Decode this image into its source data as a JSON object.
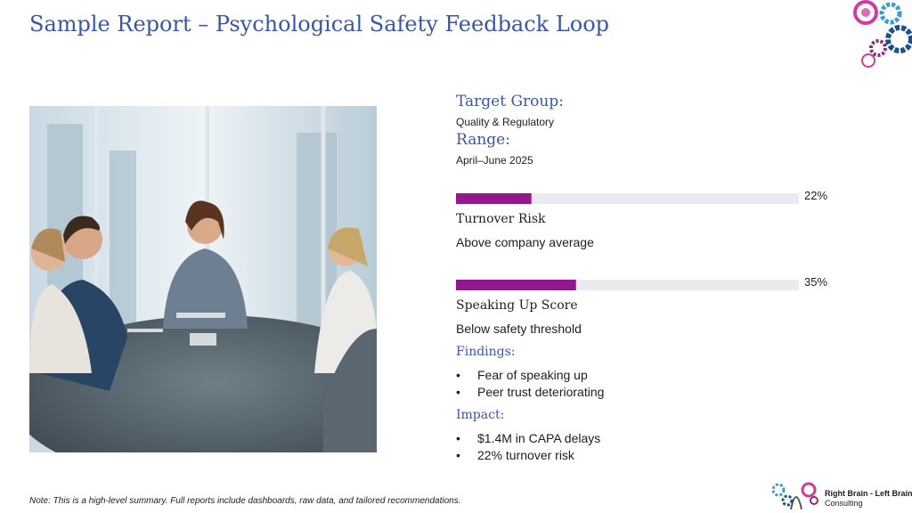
{
  "header": {
    "title": "Sample Report – Psychological Safety Feedback Loop"
  },
  "details": {
    "target_group": {
      "label": "Target Group:",
      "value": "Quality & Regulatory"
    },
    "range": {
      "label": "Range:",
      "value": "April–June 2025"
    }
  },
  "metrics": {
    "xlim": [
      0,
      100
    ],
    "color": "#93188f",
    "track_color": "#e9ebf1",
    "items": [
      {
        "value": 22,
        "value_label": "22%",
        "name": "Turnover Risk",
        "note": "Above company average"
      },
      {
        "value": 35,
        "value_label": "35%",
        "name": "Speaking Up Score",
        "note": "Below safety threshold"
      }
    ]
  },
  "findings": {
    "heading": "Findings:",
    "items": [
      "Fear of speaking up",
      "Peer trust deteriorating"
    ]
  },
  "impact": {
    "heading": "Impact:",
    "items": [
      "$1.4M in CAPA delays",
      "22% turnover risk"
    ]
  },
  "footnote": "Note: This is a high-level summary. Full reports include dashboards, raw data, and tailored recommendations.",
  "logo": {
    "name": "Right Brain - Left Brain",
    "sub": "Consulting"
  }
}
